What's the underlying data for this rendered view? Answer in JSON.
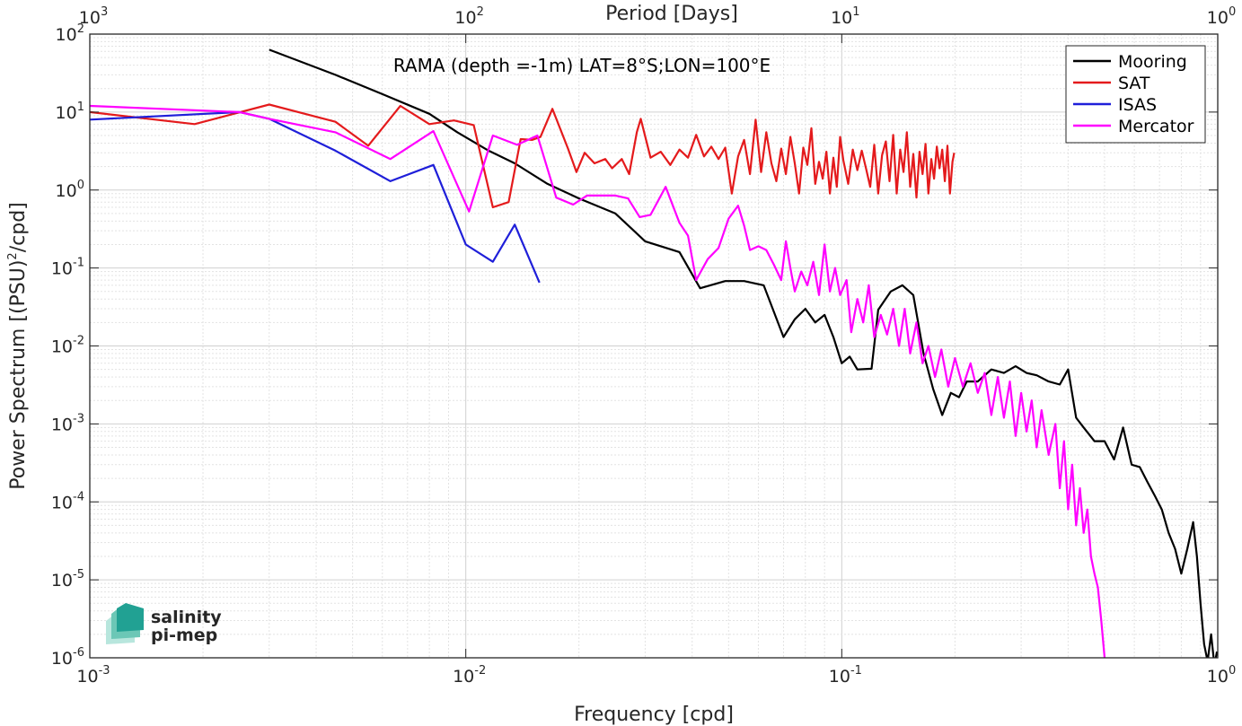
{
  "chart_data": {
    "type": "line",
    "title": "RAMA (depth =-1m) LAT=8°S;LON=100°E",
    "xlabel": "Frequency [cpd]",
    "ylabel": "Power Spectrum [(PSU)",
    "ylabel_sup": "2",
    "ylabel_tail": "/cpd]",
    "top_xlabel": "Period [Days]",
    "xscale": "log",
    "yscale": "log",
    "xlim": [
      0.001,
      1
    ],
    "ylim": [
      1e-06,
      100
    ],
    "grid": true,
    "legend_position": "top-right",
    "x_ticks": [
      {
        "base": "10",
        "exp": "-3"
      },
      {
        "base": "10",
        "exp": "-2"
      },
      {
        "base": "10",
        "exp": "-1"
      },
      {
        "base": "10",
        "exp": "0"
      }
    ],
    "top_ticks": [
      {
        "base": "10",
        "exp": "3"
      },
      {
        "base": "10",
        "exp": "2"
      },
      {
        "base": "10",
        "exp": "1"
      },
      {
        "base": "10",
        "exp": "0"
      }
    ],
    "y_ticks": [
      {
        "base": "10",
        "exp": "2"
      },
      {
        "base": "10",
        "exp": "1"
      },
      {
        "base": "10",
        "exp": "0"
      },
      {
        "base": "10",
        "exp": "-1"
      },
      {
        "base": "10",
        "exp": "-2"
      },
      {
        "base": "10",
        "exp": "-3"
      },
      {
        "base": "10",
        "exp": "-4"
      },
      {
        "base": "10",
        "exp": "-5"
      },
      {
        "base": "10",
        "exp": "-6"
      }
    ],
    "series": [
      {
        "name": "Mooring",
        "color": "#000000",
        "points": [
          [
            0.003,
            63
          ],
          [
            0.0045,
            30
          ],
          [
            0.006,
            17
          ],
          [
            0.008,
            9.5
          ],
          [
            0.0095,
            5.5
          ],
          [
            0.0115,
            3.2
          ],
          [
            0.0135,
            2.2
          ],
          [
            0.0165,
            1.2
          ],
          [
            0.02,
            0.78
          ],
          [
            0.025,
            0.5
          ],
          [
            0.03,
            0.22
          ],
          [
            0.037,
            0.16
          ],
          [
            0.042,
            0.055
          ],
          [
            0.049,
            0.068
          ],
          [
            0.055,
            0.068
          ],
          [
            0.062,
            0.06
          ],
          [
            0.07,
            0.013
          ],
          [
            0.075,
            0.022
          ],
          [
            0.08,
            0.03
          ],
          [
            0.085,
            0.02
          ],
          [
            0.09,
            0.025
          ],
          [
            0.095,
            0.013
          ],
          [
            0.1,
            0.006
          ],
          [
            0.105,
            0.0073
          ],
          [
            0.11,
            0.005
          ],
          [
            0.12,
            0.0051
          ],
          [
            0.125,
            0.029
          ],
          [
            0.135,
            0.05
          ],
          [
            0.145,
            0.06
          ],
          [
            0.155,
            0.045
          ],
          [
            0.165,
            0.008
          ],
          [
            0.175,
            0.0028
          ],
          [
            0.185,
            0.0013
          ],
          [
            0.195,
            0.0025
          ],
          [
            0.205,
            0.0022
          ],
          [
            0.215,
            0.0035
          ],
          [
            0.23,
            0.0035
          ],
          [
            0.25,
            0.005
          ],
          [
            0.27,
            0.0045
          ],
          [
            0.29,
            0.0055
          ],
          [
            0.31,
            0.0045
          ],
          [
            0.33,
            0.0042
          ],
          [
            0.355,
            0.0035
          ],
          [
            0.38,
            0.0032
          ],
          [
            0.4,
            0.005
          ],
          [
            0.42,
            0.0012
          ],
          [
            0.44,
            0.0009
          ],
          [
            0.47,
            0.0006
          ],
          [
            0.5,
            0.0006
          ],
          [
            0.53,
            0.00035
          ],
          [
            0.56,
            0.0009
          ],
          [
            0.59,
            0.0003
          ],
          [
            0.62,
            0.00028
          ],
          [
            0.65,
            0.00018
          ],
          [
            0.68,
            0.00012
          ],
          [
            0.71,
            8e-05
          ],
          [
            0.74,
            4e-05
          ],
          [
            0.77,
            2.5e-05
          ],
          [
            0.8,
            1.2e-05
          ],
          [
            0.83,
            2.5e-05
          ],
          [
            0.86,
            5.5e-05
          ],
          [
            0.88,
            2e-05
          ],
          [
            0.9,
            5e-06
          ],
          [
            0.92,
            1.5e-06
          ],
          [
            0.94,
            9e-07
          ],
          [
            0.96,
            2e-06
          ],
          [
            0.98,
            8e-07
          ],
          [
            0.995,
            1.2e-06
          ]
        ]
      },
      {
        "name": "SAT",
        "color": "#e41a1c",
        "points": [
          [
            0.001,
            10
          ],
          [
            0.0019,
            7
          ],
          [
            0.003,
            12.5
          ],
          [
            0.0045,
            7.5
          ],
          [
            0.0055,
            3.7
          ],
          [
            0.0067,
            12
          ],
          [
            0.008,
            7
          ],
          [
            0.0093,
            7.8
          ],
          [
            0.0105,
            6.8
          ],
          [
            0.0118,
            0.6
          ],
          [
            0.013,
            0.7
          ],
          [
            0.014,
            4.5
          ],
          [
            0.015,
            4.4
          ],
          [
            0.0158,
            4.8
          ],
          [
            0.017,
            11
          ],
          [
            0.0187,
            3.4
          ],
          [
            0.0197,
            1.7
          ],
          [
            0.0207,
            3
          ],
          [
            0.022,
            2.2
          ],
          [
            0.0235,
            2.5
          ],
          [
            0.0245,
            1.9
          ],
          [
            0.026,
            2.5
          ],
          [
            0.0272,
            1.6
          ],
          [
            0.0285,
            5.5
          ],
          [
            0.0292,
            8.2
          ],
          [
            0.031,
            2.6
          ],
          [
            0.033,
            3.1
          ],
          [
            0.035,
            2.1
          ],
          [
            0.037,
            3.3
          ],
          [
            0.039,
            2.6
          ],
          [
            0.041,
            5.1
          ],
          [
            0.043,
            2.7
          ],
          [
            0.045,
            3.6
          ],
          [
            0.047,
            2.5
          ],
          [
            0.049,
            3.5
          ],
          [
            0.051,
            0.9
          ],
          [
            0.053,
            2.7
          ],
          [
            0.055,
            4.4
          ],
          [
            0.057,
            1.6
          ],
          [
            0.059,
            8
          ],
          [
            0.061,
            1.7
          ],
          [
            0.063,
            5.5
          ],
          [
            0.065,
            2.2
          ],
          [
            0.067,
            1.3
          ],
          [
            0.069,
            3.4
          ],
          [
            0.071,
            1.6
          ],
          [
            0.073,
            4.8
          ],
          [
            0.075,
            2.2
          ],
          [
            0.077,
            0.9
          ],
          [
            0.079,
            3.5
          ],
          [
            0.081,
            2.1
          ],
          [
            0.083,
            6.2
          ],
          [
            0.085,
            1.2
          ],
          [
            0.087,
            2.3
          ],
          [
            0.089,
            1.4
          ],
          [
            0.091,
            3.1
          ],
          [
            0.093,
            0.9
          ],
          [
            0.095,
            2.6
          ],
          [
            0.097,
            1.1
          ],
          [
            0.099,
            4.8
          ],
          [
            0.101,
            2.4
          ],
          [
            0.104,
            1.2
          ],
          [
            0.107,
            3.3
          ],
          [
            0.11,
            1.8
          ],
          [
            0.113,
            3.2
          ],
          [
            0.116,
            1.9
          ],
          [
            0.119,
            1.1
          ],
          [
            0.122,
            3.8
          ],
          [
            0.125,
            0.9
          ],
          [
            0.128,
            2.8
          ],
          [
            0.131,
            4.2
          ],
          [
            0.134,
            1.3
          ],
          [
            0.137,
            5.1
          ],
          [
            0.14,
            0.9
          ],
          [
            0.143,
            3.3
          ],
          [
            0.146,
            1.7
          ],
          [
            0.149,
            5.5
          ],
          [
            0.152,
            1.1
          ],
          [
            0.155,
            2.9
          ],
          [
            0.158,
            0.8
          ],
          [
            0.161,
            3.1
          ],
          [
            0.164,
            1.6
          ],
          [
            0.167,
            3.9
          ],
          [
            0.17,
            0.9
          ],
          [
            0.173,
            2.5
          ],
          [
            0.176,
            1.4
          ],
          [
            0.179,
            3.6
          ],
          [
            0.182,
            1.9
          ],
          [
            0.185,
            3.3
          ],
          [
            0.188,
            1.3
          ],
          [
            0.191,
            3.7
          ],
          [
            0.194,
            0.9
          ],
          [
            0.197,
            2.3
          ],
          [
            0.199,
            3.0
          ]
        ]
      },
      {
        "name": "ISAS",
        "color": "#1f1fd9",
        "points": [
          [
            0.001,
            8
          ],
          [
            0.0025,
            10
          ],
          [
            0.003,
            8.2
          ],
          [
            0.0045,
            3.2
          ],
          [
            0.0063,
            1.3
          ],
          [
            0.0082,
            2.1
          ],
          [
            0.01,
            0.2
          ],
          [
            0.0118,
            0.12
          ],
          [
            0.0135,
            0.36
          ],
          [
            0.0157,
            0.065
          ]
        ]
      },
      {
        "name": "Mercator",
        "color": "#ff00ff",
        "points": [
          [
            0.001,
            12
          ],
          [
            0.0025,
            10
          ],
          [
            0.003,
            8.2
          ],
          [
            0.0045,
            5.5
          ],
          [
            0.0063,
            2.5
          ],
          [
            0.0082,
            5.7
          ],
          [
            0.0102,
            0.53
          ],
          [
            0.0118,
            5
          ],
          [
            0.0137,
            3.8
          ],
          [
            0.0155,
            5
          ],
          [
            0.0174,
            0.8
          ],
          [
            0.0193,
            0.65
          ],
          [
            0.021,
            0.85
          ],
          [
            0.025,
            0.85
          ],
          [
            0.027,
            0.78
          ],
          [
            0.029,
            0.45
          ],
          [
            0.031,
            0.48
          ],
          [
            0.034,
            1.1
          ],
          [
            0.037,
            0.38
          ],
          [
            0.039,
            0.26
          ],
          [
            0.041,
            0.07
          ],
          [
            0.044,
            0.13
          ],
          [
            0.047,
            0.18
          ],
          [
            0.05,
            0.43
          ],
          [
            0.053,
            0.63
          ],
          [
            0.055,
            0.35
          ],
          [
            0.057,
            0.17
          ],
          [
            0.06,
            0.19
          ],
          [
            0.063,
            0.17
          ],
          [
            0.066,
            0.11
          ],
          [
            0.069,
            0.07
          ],
          [
            0.071,
            0.22
          ],
          [
            0.073,
            0.1
          ],
          [
            0.075,
            0.05
          ],
          [
            0.078,
            0.09
          ],
          [
            0.081,
            0.06
          ],
          [
            0.084,
            0.12
          ],
          [
            0.087,
            0.045
          ],
          [
            0.09,
            0.2
          ],
          [
            0.093,
            0.05
          ],
          [
            0.096,
            0.1
          ],
          [
            0.099,
            0.045
          ],
          [
            0.103,
            0.07
          ],
          [
            0.106,
            0.015
          ],
          [
            0.11,
            0.04
          ],
          [
            0.114,
            0.02
          ],
          [
            0.118,
            0.06
          ],
          [
            0.122,
            0.013
          ],
          [
            0.127,
            0.025
          ],
          [
            0.132,
            0.014
          ],
          [
            0.137,
            0.03
          ],
          [
            0.142,
            0.01
          ],
          [
            0.147,
            0.03
          ],
          [
            0.152,
            0.008
          ],
          [
            0.158,
            0.02
          ],
          [
            0.164,
            0.006
          ],
          [
            0.17,
            0.01
          ],
          [
            0.177,
            0.004
          ],
          [
            0.184,
            0.009
          ],
          [
            0.192,
            0.003
          ],
          [
            0.2,
            0.007
          ],
          [
            0.21,
            0.003
          ],
          [
            0.22,
            0.006
          ],
          [
            0.23,
            0.0025
          ],
          [
            0.24,
            0.0045
          ],
          [
            0.25,
            0.0013
          ],
          [
            0.26,
            0.004
          ],
          [
            0.27,
            0.0012
          ],
          [
            0.28,
            0.0035
          ],
          [
            0.29,
            0.0007
          ],
          [
            0.3,
            0.0025
          ],
          [
            0.31,
            0.0008
          ],
          [
            0.32,
            0.002
          ],
          [
            0.33,
            0.0005
          ],
          [
            0.34,
            0.0015
          ],
          [
            0.355,
            0.0004
          ],
          [
            0.37,
            0.001
          ],
          [
            0.38,
            0.00015
          ],
          [
            0.39,
            0.0006
          ],
          [
            0.4,
            8e-05
          ],
          [
            0.41,
            0.0003
          ],
          [
            0.42,
            5e-05
          ],
          [
            0.43,
            0.00015
          ],
          [
            0.44,
            4e-05
          ],
          [
            0.45,
            8e-05
          ],
          [
            0.46,
            2e-05
          ],
          [
            0.47,
            1.2e-05
          ],
          [
            0.48,
            8e-06
          ],
          [
            0.49,
            3e-06
          ],
          [
            0.5,
            1e-06
          ]
        ]
      }
    ],
    "logo": {
      "line1": "salinity",
      "line2": "pi-mep",
      "color": "#21a193"
    }
  }
}
